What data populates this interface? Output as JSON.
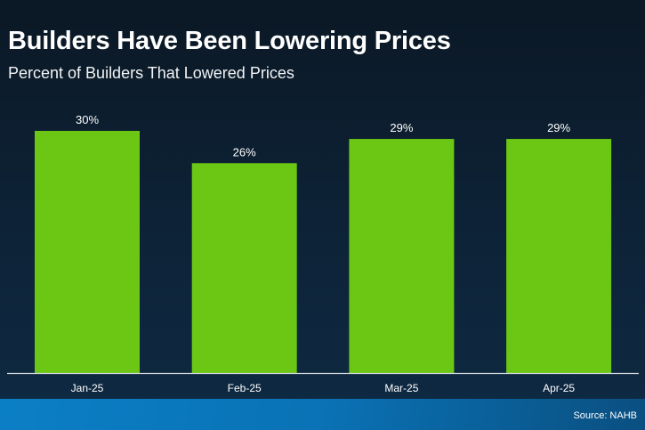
{
  "header": {
    "title": "Builders Have Been Lowering Prices",
    "subtitle": "Percent of Builders That Lowered Prices"
  },
  "footer": {
    "source": "Source: NAHB"
  },
  "colors": {
    "bar": "#6cc614",
    "axis": "#d8dde3",
    "background": "#0d2236"
  },
  "chart_data": {
    "type": "bar",
    "title": "Builders Have Been Lowering Prices",
    "subtitle": "Percent of Builders That Lowered Prices",
    "categories": [
      "Jan-25",
      "Feb-25",
      "Mar-25",
      "Apr-25"
    ],
    "values": [
      30,
      26,
      29,
      29
    ],
    "data_labels": [
      "30%",
      "26%",
      "29%",
      "29%"
    ],
    "unit": "%",
    "ylim": [
      0,
      30
    ],
    "grid": false,
    "legend": "none"
  }
}
